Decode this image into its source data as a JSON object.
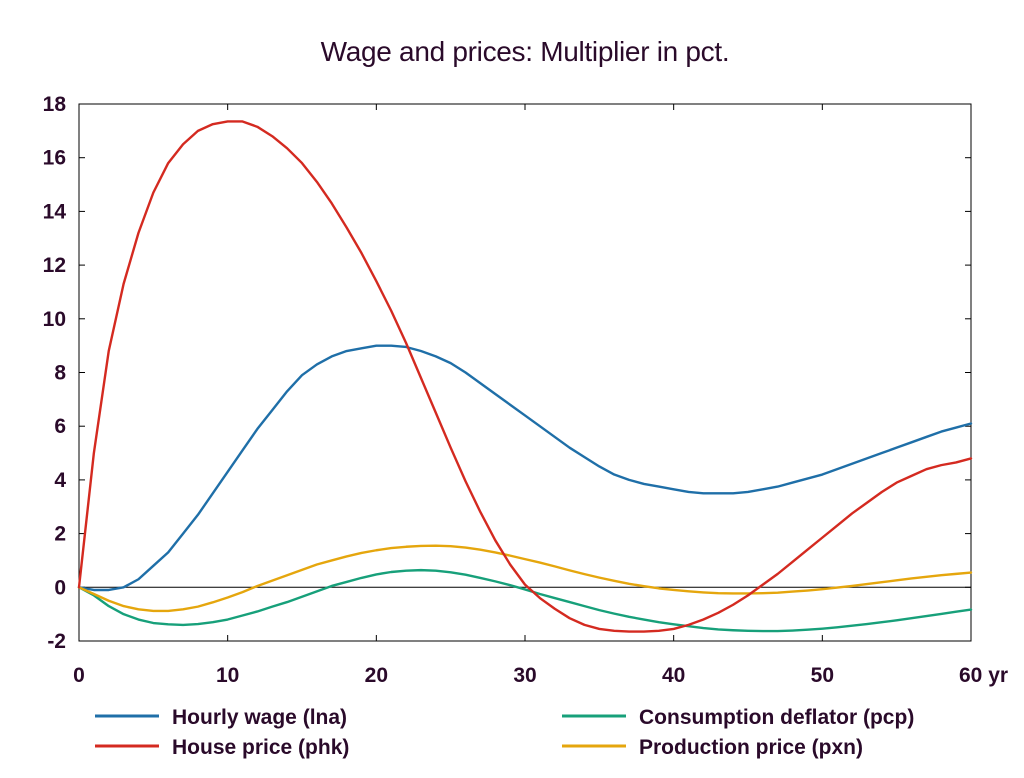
{
  "chart_data": {
    "type": "line",
    "title": "Wage and prices: Multiplier in pct.",
    "xlabel": "",
    "ylabel": "",
    "x_unit_label": "yr",
    "xlim": [
      0,
      60
    ],
    "ylim": [
      -2,
      18
    ],
    "xticks": [
      0,
      10,
      20,
      30,
      40,
      50,
      60
    ],
    "xtick_labels": [
      "0",
      "10",
      "20",
      "30",
      "40",
      "50",
      "60 yr"
    ],
    "yticks": [
      -2,
      0,
      2,
      4,
      6,
      8,
      10,
      12,
      14,
      16,
      18
    ],
    "ytick_labels": [
      "-2",
      "0",
      "2",
      "4",
      "6",
      "8",
      "10",
      "12",
      "14",
      "16",
      "18"
    ],
    "zero_line": true,
    "grid": false,
    "legend_position": "bottom",
    "x": [
      0,
      1,
      2,
      3,
      4,
      5,
      6,
      7,
      8,
      9,
      10,
      11,
      12,
      13,
      14,
      15,
      16,
      17,
      18,
      19,
      20,
      21,
      22,
      23,
      24,
      25,
      26,
      27,
      28,
      29,
      30,
      31,
      32,
      33,
      34,
      35,
      36,
      37,
      38,
      39,
      40,
      41,
      42,
      43,
      44,
      45,
      46,
      47,
      48,
      49,
      50,
      51,
      52,
      53,
      54,
      55,
      56,
      57,
      58,
      59,
      60
    ],
    "series": [
      {
        "name": "Hourly wage (lna)",
        "color": "#1f6fa8",
        "values": [
          0,
          -0.1,
          -0.1,
          0,
          0.3,
          0.8,
          1.3,
          2.0,
          2.7,
          3.5,
          4.3,
          5.1,
          5.9,
          6.6,
          7.3,
          7.9,
          8.3,
          8.6,
          8.8,
          8.9,
          9.0,
          9.0,
          8.95,
          8.8,
          8.6,
          8.35,
          8.0,
          7.6,
          7.2,
          6.8,
          6.4,
          6.0,
          5.6,
          5.2,
          4.85,
          4.5,
          4.2,
          4.0,
          3.85,
          3.75,
          3.65,
          3.55,
          3.5,
          3.5,
          3.5,
          3.55,
          3.65,
          3.75,
          3.9,
          4.05,
          4.2,
          4.4,
          4.6,
          4.8,
          5.0,
          5.2,
          5.4,
          5.6,
          5.8,
          5.95,
          6.1
        ]
      },
      {
        "name": "House price (phk)",
        "color": "#d42a20",
        "values": [
          0,
          5.0,
          8.8,
          11.3,
          13.2,
          14.7,
          15.8,
          16.5,
          17.0,
          17.25,
          17.35,
          17.35,
          17.15,
          16.8,
          16.35,
          15.8,
          15.1,
          14.3,
          13.4,
          12.45,
          11.4,
          10.3,
          9.1,
          7.8,
          6.5,
          5.2,
          3.95,
          2.8,
          1.75,
          0.85,
          0.1,
          -0.4,
          -0.8,
          -1.15,
          -1.4,
          -1.55,
          -1.62,
          -1.65,
          -1.65,
          -1.62,
          -1.55,
          -1.4,
          -1.2,
          -0.95,
          -0.65,
          -0.3,
          0.1,
          0.5,
          0.95,
          1.4,
          1.85,
          2.3,
          2.75,
          3.15,
          3.55,
          3.9,
          4.15,
          4.4,
          4.55,
          4.65,
          4.8
        ]
      },
      {
        "name": "Consumption deflator (pcp)",
        "color": "#17a07a",
        "values": [
          0,
          -0.3,
          -0.7,
          -1.0,
          -1.2,
          -1.33,
          -1.38,
          -1.4,
          -1.37,
          -1.3,
          -1.2,
          -1.05,
          -0.9,
          -0.72,
          -0.55,
          -0.35,
          -0.15,
          0.05,
          0.2,
          0.35,
          0.48,
          0.57,
          0.62,
          0.64,
          0.62,
          0.56,
          0.47,
          0.35,
          0.22,
          0.08,
          -0.08,
          -0.25,
          -0.4,
          -0.55,
          -0.7,
          -0.85,
          -0.98,
          -1.1,
          -1.2,
          -1.3,
          -1.38,
          -1.45,
          -1.52,
          -1.57,
          -1.6,
          -1.62,
          -1.63,
          -1.63,
          -1.61,
          -1.58,
          -1.54,
          -1.49,
          -1.43,
          -1.37,
          -1.3,
          -1.23,
          -1.15,
          -1.07,
          -0.99,
          -0.91,
          -0.83
        ]
      },
      {
        "name": "Production price (pxn)",
        "color": "#e5a60d",
        "values": [
          0,
          -0.25,
          -0.5,
          -0.7,
          -0.82,
          -0.88,
          -0.88,
          -0.82,
          -0.72,
          -0.56,
          -0.38,
          -0.18,
          0.05,
          0.25,
          0.45,
          0.65,
          0.85,
          1.0,
          1.15,
          1.28,
          1.38,
          1.46,
          1.51,
          1.54,
          1.55,
          1.53,
          1.48,
          1.4,
          1.3,
          1.18,
          1.05,
          0.92,
          0.78,
          0.63,
          0.49,
          0.36,
          0.24,
          0.13,
          0.04,
          -0.04,
          -0.1,
          -0.15,
          -0.19,
          -0.22,
          -0.23,
          -0.23,
          -0.22,
          -0.2,
          -0.16,
          -0.12,
          -0.07,
          -0.01,
          0.05,
          0.12,
          0.19,
          0.26,
          0.33,
          0.39,
          0.45,
          0.5,
          0.55
        ]
      }
    ]
  },
  "legend": {
    "items": [
      {
        "label": "Hourly wage (lna)",
        "color": "#1f6fa8"
      },
      {
        "label": "House price (phk)",
        "color": "#d42a20"
      },
      {
        "label": "Consumption deflator (pcp)",
        "color": "#17a07a"
      },
      {
        "label": "Production price (pxn)",
        "color": "#e5a60d"
      }
    ]
  }
}
